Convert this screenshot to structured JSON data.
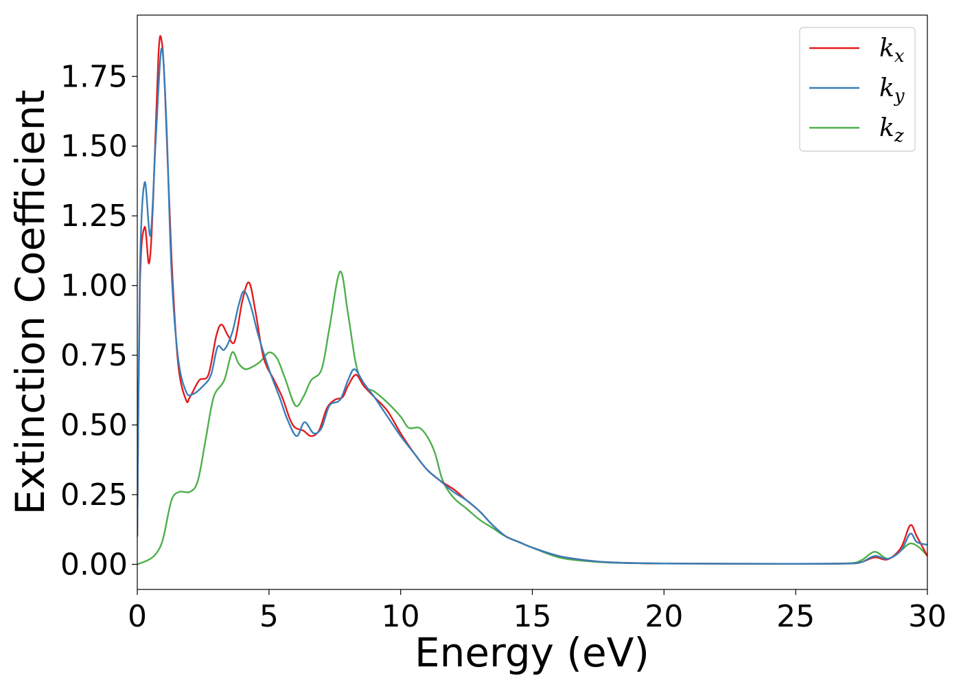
{
  "chart_data": {
    "type": "line",
    "xlabel": "Energy (eV)",
    "ylabel": "Extinction Coefficient",
    "xlim": [
      0,
      30
    ],
    "ylim": [
      -0.09,
      1.97
    ],
    "xticks": [
      0,
      5,
      10,
      15,
      20,
      25,
      30
    ],
    "xtick_labels": [
      "0",
      "5",
      "10",
      "15",
      "20",
      "25",
      "30"
    ],
    "yticks": [
      0,
      0.25,
      0.5,
      0.75,
      1.0,
      1.25,
      1.5,
      1.75
    ],
    "ytick_labels": [
      "0.00",
      "0.25",
      "0.50",
      "0.75",
      "1.00",
      "1.25",
      "1.50",
      "1.75"
    ],
    "grid": false,
    "legend_position": "top-right",
    "series": [
      {
        "name": "k_x",
        "label_main": "k",
        "label_sub": "x",
        "color": "#e41a1c",
        "points": [
          [
            0,
            0.1
          ],
          [
            0.1,
            1.0
          ],
          [
            0.28,
            1.21
          ],
          [
            0.45,
            1.08
          ],
          [
            0.6,
            1.3
          ],
          [
            0.8,
            1.82
          ],
          [
            0.92,
            1.88
          ],
          [
            1.05,
            1.7
          ],
          [
            1.3,
            1.1
          ],
          [
            1.55,
            0.72
          ],
          [
            1.85,
            0.59
          ],
          [
            2.0,
            0.6
          ],
          [
            2.35,
            0.66
          ],
          [
            2.7,
            0.68
          ],
          [
            3.0,
            0.82
          ],
          [
            3.2,
            0.86
          ],
          [
            3.45,
            0.82
          ],
          [
            3.7,
            0.8
          ],
          [
            4.0,
            0.95
          ],
          [
            4.25,
            1.01
          ],
          [
            4.5,
            0.9
          ],
          [
            4.8,
            0.74
          ],
          [
            5.2,
            0.66
          ],
          [
            5.5,
            0.6
          ],
          [
            5.8,
            0.52
          ],
          [
            6.0,
            0.49
          ],
          [
            6.3,
            0.48
          ],
          [
            6.6,
            0.46
          ],
          [
            6.9,
            0.48
          ],
          [
            7.2,
            0.56
          ],
          [
            7.5,
            0.59
          ],
          [
            7.8,
            0.6
          ],
          [
            8.0,
            0.64
          ],
          [
            8.3,
            0.68
          ],
          [
            8.6,
            0.64
          ],
          [
            9.0,
            0.6
          ],
          [
            9.5,
            0.55
          ],
          [
            10.0,
            0.47
          ],
          [
            10.5,
            0.4
          ],
          [
            11.0,
            0.34
          ],
          [
            11.5,
            0.3
          ],
          [
            12.0,
            0.27
          ],
          [
            12.5,
            0.23
          ],
          [
            13.0,
            0.19
          ],
          [
            13.5,
            0.14
          ],
          [
            14.0,
            0.1
          ],
          [
            14.5,
            0.08
          ],
          [
            15.0,
            0.06
          ],
          [
            16.0,
            0.03
          ],
          [
            17.0,
            0.015
          ],
          [
            18.0,
            0.007
          ],
          [
            20.0,
            0.003
          ],
          [
            25.0,
            0.002
          ],
          [
            27.0,
            0.003
          ],
          [
            27.5,
            0.008
          ],
          [
            28.0,
            0.025
          ],
          [
            28.5,
            0.018
          ],
          [
            29.0,
            0.06
          ],
          [
            29.35,
            0.14
          ],
          [
            29.6,
            0.1
          ],
          [
            30.0,
            0.03
          ]
        ]
      },
      {
        "name": "k_y",
        "label_main": "k",
        "label_sub": "y",
        "color": "#377eb8",
        "points": [
          [
            0,
            0.1
          ],
          [
            0.1,
            1.05
          ],
          [
            0.28,
            1.37
          ],
          [
            0.5,
            1.18
          ],
          [
            0.7,
            1.52
          ],
          [
            0.92,
            1.85
          ],
          [
            1.1,
            1.6
          ],
          [
            1.3,
            1.05
          ],
          [
            1.55,
            0.74
          ],
          [
            1.85,
            0.62
          ],
          [
            2.1,
            0.61
          ],
          [
            2.5,
            0.64
          ],
          [
            2.8,
            0.68
          ],
          [
            3.05,
            0.78
          ],
          [
            3.3,
            0.77
          ],
          [
            3.6,
            0.83
          ],
          [
            3.85,
            0.93
          ],
          [
            4.05,
            0.98
          ],
          [
            4.3,
            0.93
          ],
          [
            4.6,
            0.82
          ],
          [
            5.0,
            0.7
          ],
          [
            5.4,
            0.6
          ],
          [
            5.7,
            0.52
          ],
          [
            6.05,
            0.46
          ],
          [
            6.35,
            0.51
          ],
          [
            6.7,
            0.47
          ],
          [
            7.0,
            0.49
          ],
          [
            7.3,
            0.57
          ],
          [
            7.7,
            0.59
          ],
          [
            8.0,
            0.66
          ],
          [
            8.25,
            0.7
          ],
          [
            8.6,
            0.65
          ],
          [
            9.0,
            0.6
          ],
          [
            9.5,
            0.53
          ],
          [
            10.0,
            0.46
          ],
          [
            10.5,
            0.4
          ],
          [
            11.0,
            0.34
          ],
          [
            11.5,
            0.3
          ],
          [
            12.0,
            0.26
          ],
          [
            12.5,
            0.23
          ],
          [
            13.0,
            0.19
          ],
          [
            13.5,
            0.14
          ],
          [
            14.0,
            0.1
          ],
          [
            14.5,
            0.08
          ],
          [
            15.0,
            0.06
          ],
          [
            16.0,
            0.03
          ],
          [
            17.0,
            0.015
          ],
          [
            18.0,
            0.007
          ],
          [
            20.0,
            0.003
          ],
          [
            25.0,
            0.002
          ],
          [
            27.0,
            0.003
          ],
          [
            27.5,
            0.008
          ],
          [
            28.0,
            0.03
          ],
          [
            28.5,
            0.02
          ],
          [
            29.0,
            0.05
          ],
          [
            29.35,
            0.11
          ],
          [
            29.6,
            0.08
          ],
          [
            30.0,
            0.07
          ]
        ]
      },
      {
        "name": "k_z",
        "label_main": "k",
        "label_sub": "z",
        "color": "#4daf4a",
        "points": [
          [
            0,
            0.0
          ],
          [
            0.5,
            0.02
          ],
          [
            0.8,
            0.05
          ],
          [
            1.0,
            0.1
          ],
          [
            1.3,
            0.23
          ],
          [
            1.6,
            0.26
          ],
          [
            2.0,
            0.26
          ],
          [
            2.3,
            0.3
          ],
          [
            2.6,
            0.45
          ],
          [
            2.9,
            0.6
          ],
          [
            3.3,
            0.66
          ],
          [
            3.6,
            0.76
          ],
          [
            3.85,
            0.72
          ],
          [
            4.1,
            0.7
          ],
          [
            4.4,
            0.71
          ],
          [
            4.7,
            0.73
          ],
          [
            5.0,
            0.76
          ],
          [
            5.3,
            0.74
          ],
          [
            5.6,
            0.67
          ],
          [
            6.0,
            0.57
          ],
          [
            6.3,
            0.6
          ],
          [
            6.6,
            0.66
          ],
          [
            7.0,
            0.7
          ],
          [
            7.3,
            0.85
          ],
          [
            7.7,
            1.05
          ],
          [
            8.0,
            0.9
          ],
          [
            8.3,
            0.72
          ],
          [
            8.6,
            0.64
          ],
          [
            9.0,
            0.62
          ],
          [
            9.5,
            0.58
          ],
          [
            10.0,
            0.53
          ],
          [
            10.3,
            0.49
          ],
          [
            10.7,
            0.49
          ],
          [
            11.0,
            0.46
          ],
          [
            11.3,
            0.4
          ],
          [
            11.6,
            0.3
          ],
          [
            12.0,
            0.24
          ],
          [
            12.5,
            0.2
          ],
          [
            13.0,
            0.16
          ],
          [
            13.5,
            0.13
          ],
          [
            14.0,
            0.1
          ],
          [
            15.0,
            0.06
          ],
          [
            16.0,
            0.025
          ],
          [
            17.0,
            0.012
          ],
          [
            18.0,
            0.006
          ],
          [
            20.0,
            0.003
          ],
          [
            25.0,
            0.002
          ],
          [
            27.0,
            0.004
          ],
          [
            27.5,
            0.015
          ],
          [
            28.0,
            0.045
          ],
          [
            28.5,
            0.02
          ],
          [
            29.0,
            0.05
          ],
          [
            29.35,
            0.075
          ],
          [
            29.7,
            0.06
          ],
          [
            30.0,
            0.03
          ]
        ]
      }
    ]
  }
}
